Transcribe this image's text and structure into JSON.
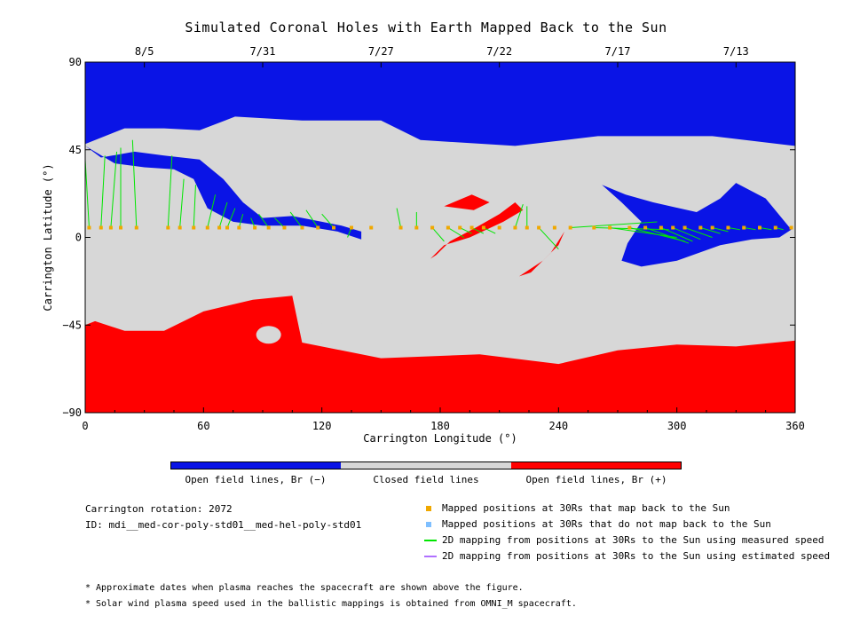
{
  "title": "Simulated Coronal Holes with Earth Mapped Back to the Sun",
  "colors": {
    "open_negative": "#0a14e6",
    "closed": "#d7d7d7",
    "open_positive": "#ff0000",
    "mapped": "#f0a800",
    "unmapped": "#7fbfff",
    "measured": "#00e600",
    "estimated": "#b070ff"
  },
  "chart_data": {
    "type": "scatter",
    "title": "Simulated Coronal Holes with Earth Mapped Back to the Sun",
    "xlabel": "Carrington Longitude (°)",
    "ylabel": "Carrington Latitude (°)",
    "xlim": [
      0,
      360
    ],
    "ylim": [
      -90,
      90
    ],
    "x_ticks": [
      0,
      60,
      120,
      180,
      240,
      300,
      360
    ],
    "y_ticks": [
      90,
      45,
      0,
      -45,
      -90
    ],
    "top_axis": {
      "ticks": [
        {
          "label": "8/5",
          "lon": 30
        },
        {
          "label": "7/31",
          "lon": 90
        },
        {
          "label": "7/27",
          "lon": 150
        },
        {
          "label": "7/22",
          "lon": 210
        },
        {
          "label": "7/17",
          "lon": 270
        },
        {
          "label": "7/13",
          "lon": 330
        }
      ]
    },
    "regions": {
      "north_polar_hole": [
        [
          0,
          90
        ],
        [
          360,
          90
        ],
        [
          360,
          47
        ],
        [
          318,
          52
        ],
        [
          260,
          52
        ],
        [
          218,
          47
        ],
        [
          170,
          50
        ],
        [
          150,
          60
        ],
        [
          110,
          60
        ],
        [
          76,
          62
        ],
        [
          58,
          55
        ],
        [
          40,
          56
        ],
        [
          20,
          56
        ],
        [
          0,
          48
        ]
      ],
      "south_polar_hole": [
        [
          0,
          -90
        ],
        [
          360,
          -90
        ],
        [
          360,
          -53
        ],
        [
          330,
          -56
        ],
        [
          300,
          -55
        ],
        [
          270,
          -58
        ],
        [
          240,
          -65
        ],
        [
          200,
          -60
        ],
        [
          150,
          -62
        ],
        [
          110,
          -54
        ],
        [
          105,
          -30
        ],
        [
          85,
          -32
        ],
        [
          60,
          -38
        ],
        [
          40,
          -48
        ],
        [
          20,
          -48
        ],
        [
          5,
          -43
        ],
        [
          0,
          -45
        ]
      ],
      "negative_hole_west": [
        [
          0,
          47
        ],
        [
          8,
          41
        ],
        [
          25,
          44
        ],
        [
          40,
          42
        ],
        [
          58,
          40
        ],
        [
          70,
          30
        ],
        [
          80,
          18
        ],
        [
          90,
          10
        ],
        [
          105,
          11
        ],
        [
          120,
          8
        ],
        [
          130,
          6
        ],
        [
          140,
          3
        ],
        [
          140,
          -1
        ],
        [
          128,
          3
        ],
        [
          110,
          6
        ],
        [
          90,
          6
        ],
        [
          75,
          8
        ],
        [
          62,
          15
        ],
        [
          55,
          30
        ],
        [
          45,
          35
        ],
        [
          30,
          36
        ],
        [
          15,
          38
        ]
      ],
      "negative_hole_east": [
        [
          262,
          27
        ],
        [
          274,
          22
        ],
        [
          288,
          18
        ],
        [
          310,
          13
        ],
        [
          322,
          20
        ],
        [
          330,
          28
        ],
        [
          345,
          20
        ],
        [
          358,
          4
        ],
        [
          352,
          0
        ],
        [
          338,
          -1
        ],
        [
          322,
          -4
        ],
        [
          300,
          -12
        ],
        [
          282,
          -15
        ],
        [
          272,
          -12
        ],
        [
          275,
          -3
        ],
        [
          282,
          8
        ],
        [
          272,
          18
        ]
      ],
      "positive_hole_center": [
        [
          175,
          -11
        ],
        [
          182,
          -4
        ],
        [
          195,
          0
        ],
        [
          212,
          8
        ],
        [
          222,
          14
        ],
        [
          218,
          18
        ],
        [
          210,
          12
        ],
        [
          198,
          5
        ],
        [
          185,
          -2
        ],
        [
          178,
          -9
        ]
      ],
      "positive_hole_southeast": [
        [
          220,
          -20
        ],
        [
          232,
          -12
        ],
        [
          240,
          -4
        ],
        [
          243,
          3
        ],
        [
          236,
          -8
        ],
        [
          226,
          -18
        ]
      ],
      "positive_island_north": [
        [
          182,
          16
        ],
        [
          197,
          14
        ],
        [
          205,
          18
        ],
        [
          196,
          22
        ]
      ]
    },
    "mapped_points": {
      "lon": [
        2,
        8,
        13,
        18,
        26,
        42,
        48,
        55,
        62,
        68,
        72,
        78,
        86,
        93,
        101,
        110,
        118,
        126,
        135,
        145,
        160,
        168,
        176,
        184,
        190,
        196,
        202,
        210,
        218,
        224,
        230,
        238,
        246,
        258,
        266,
        276,
        284,
        292,
        298,
        304,
        312,
        318,
        326,
        334,
        342,
        350,
        358
      ],
      "lat": [
        5,
        5,
        5,
        5,
        5,
        5,
        5,
        5,
        5,
        5,
        5,
        5,
        5,
        5,
        5,
        5,
        5,
        5,
        5,
        5,
        5,
        5,
        5,
        5,
        5,
        5,
        5,
        5,
        5,
        5,
        5,
        5,
        5,
        5,
        5,
        5,
        5,
        5,
        5,
        5,
        5,
        5,
        5,
        5,
        5,
        5,
        5
      ]
    },
    "field_lines": [
      {
        "x": [
          2,
          0
        ],
        "y": [
          5,
          40
        ]
      },
      {
        "x": [
          8,
          10
        ],
        "y": [
          5,
          42
        ]
      },
      {
        "x": [
          13,
          16
        ],
        "y": [
          5,
          44
        ]
      },
      {
        "x": [
          18,
          18
        ],
        "y": [
          5,
          46
        ]
      },
      {
        "x": [
          26,
          24
        ],
        "y": [
          5,
          50
        ]
      },
      {
        "x": [
          42,
          44
        ],
        "y": [
          5,
          42
        ]
      },
      {
        "x": [
          48,
          50
        ],
        "y": [
          5,
          30
        ]
      },
      {
        "x": [
          55,
          56
        ],
        "y": [
          5,
          27
        ]
      },
      {
        "x": [
          62,
          66
        ],
        "y": [
          5,
          22
        ]
      },
      {
        "x": [
          68,
          72
        ],
        "y": [
          5,
          18
        ]
      },
      {
        "x": [
          72,
          76
        ],
        "y": [
          5,
          15
        ]
      },
      {
        "x": [
          78,
          80
        ],
        "y": [
          5,
          12
        ]
      },
      {
        "x": [
          86,
          84
        ],
        "y": [
          5,
          10
        ]
      },
      {
        "x": [
          93,
          88
        ],
        "y": [
          5,
          12
        ]
      },
      {
        "x": [
          101,
          96
        ],
        "y": [
          5,
          10
        ]
      },
      {
        "x": [
          110,
          104
        ],
        "y": [
          5,
          13
        ]
      },
      {
        "x": [
          118,
          112
        ],
        "y": [
          5,
          14
        ]
      },
      {
        "x": [
          126,
          120
        ],
        "y": [
          5,
          12
        ]
      },
      {
        "x": [
          135,
          133
        ],
        "y": [
          5,
          0
        ]
      },
      {
        "x": [
          160,
          158
        ],
        "y": [
          5,
          15
        ]
      },
      {
        "x": [
          168,
          168
        ],
        "y": [
          5,
          13
        ]
      },
      {
        "x": [
          176,
          182
        ],
        "y": [
          5,
          -2
        ]
      },
      {
        "x": [
          184,
          192
        ],
        "y": [
          5,
          0
        ]
      },
      {
        "x": [
          190,
          196
        ],
        "y": [
          5,
          2
        ]
      },
      {
        "x": [
          196,
          202
        ],
        "y": [
          5,
          2
        ]
      },
      {
        "x": [
          202,
          208
        ],
        "y": [
          5,
          2
        ]
      },
      {
        "x": [
          218,
          222
        ],
        "y": [
          5,
          17
        ]
      },
      {
        "x": [
          224,
          224
        ],
        "y": [
          5,
          16
        ]
      },
      {
        "x": [
          230,
          240
        ],
        "y": [
          5,
          -6
        ]
      },
      {
        "x": [
          246,
          290
        ],
        "y": [
          5,
          8
        ]
      },
      {
        "x": [
          258,
          296
        ],
        "y": [
          5,
          4
        ]
      },
      {
        "x": [
          266,
          300
        ],
        "y": [
          5,
          0
        ]
      },
      {
        "x": [
          276,
          304
        ],
        "y": [
          5,
          -2
        ]
      },
      {
        "x": [
          284,
          306
        ],
        "y": [
          5,
          -3
        ]
      },
      {
        "x": [
          292,
          308
        ],
        "y": [
          5,
          -2
        ]
      },
      {
        "x": [
          298,
          312
        ],
        "y": [
          5,
          -1
        ]
      },
      {
        "x": [
          304,
          318
        ],
        "y": [
          5,
          0
        ]
      },
      {
        "x": [
          312,
          322
        ],
        "y": [
          5,
          2
        ]
      },
      {
        "x": [
          318,
          326
        ],
        "y": [
          5,
          3
        ]
      },
      {
        "x": [
          326,
          332
        ],
        "y": [
          5,
          4
        ]
      },
      {
        "x": [
          334,
          340
        ],
        "y": [
          5,
          4
        ]
      },
      {
        "x": [
          342,
          348
        ],
        "y": [
          5,
          4
        ]
      },
      {
        "x": [
          350,
          354
        ],
        "y": [
          5,
          4
        ]
      }
    ]
  },
  "colorbar": {
    "labels": [
      "Open field lines, Br (−)",
      "Closed field lines",
      "Open field lines, Br (+)"
    ]
  },
  "info": {
    "rotation": "Carrington rotation: 2072",
    "id": "ID: mdi__med-cor-poly-std01__med-hel-poly-std01"
  },
  "legend": [
    {
      "label": "Mapped positions at 30Rs that map back to the Sun",
      "kind": "square",
      "color": "#f0a800"
    },
    {
      "label": "Mapped positions at 30Rs that do not map back to the Sun",
      "kind": "square",
      "color": "#7fbfff"
    },
    {
      "label": "2D mapping from positions at 30Rs to the Sun using measured speed",
      "kind": "line",
      "color": "#00e600"
    },
    {
      "label": "2D mapping from positions at 30Rs to the Sun using estimated speed",
      "kind": "line",
      "color": "#b070ff"
    }
  ],
  "notes": [
    "* Approximate dates when plasma reaches the spacecraft are shown above the figure.",
    "* Solar wind plasma speed used in the ballistic mappings is obtained from OMNI_M spacecraft."
  ]
}
